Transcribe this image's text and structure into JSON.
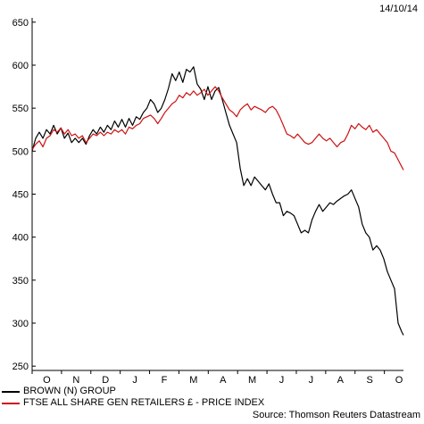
{
  "chart_data": {
    "type": "line",
    "date_stamp": "14/10/14",
    "y_ticks": [
      250,
      300,
      350,
      400,
      450,
      500,
      550,
      600,
      650
    ],
    "ylim": [
      245,
      655
    ],
    "x_ticks": [
      "O",
      "N",
      "D",
      "J",
      "F",
      "M",
      "A",
      "M",
      "J",
      "J",
      "A",
      "S",
      "O"
    ],
    "series": [
      {
        "name": "BROWN (N) GROUP",
        "color": "#000000",
        "points": [
          [
            0,
            500
          ],
          [
            2,
            515
          ],
          [
            4,
            522
          ],
          [
            6,
            515
          ],
          [
            8,
            525
          ],
          [
            10,
            520
          ],
          [
            12,
            530
          ],
          [
            14,
            520
          ],
          [
            16,
            527
          ],
          [
            18,
            515
          ],
          [
            20,
            521
          ],
          [
            22,
            510
          ],
          [
            24,
            515
          ],
          [
            26,
            510
          ],
          [
            28,
            515
          ],
          [
            30,
            508
          ],
          [
            32,
            518
          ],
          [
            34,
            525
          ],
          [
            36,
            520
          ],
          [
            38,
            528
          ],
          [
            40,
            522
          ],
          [
            42,
            530
          ],
          [
            44,
            525
          ],
          [
            46,
            535
          ],
          [
            48,
            528
          ],
          [
            50,
            537
          ],
          [
            52,
            528
          ],
          [
            54,
            538
          ],
          [
            56,
            530
          ],
          [
            58,
            540
          ],
          [
            60,
            537
          ],
          [
            62,
            545
          ],
          [
            64,
            550
          ],
          [
            66,
            560
          ],
          [
            68,
            555
          ],
          [
            70,
            545
          ],
          [
            72,
            550
          ],
          [
            74,
            560
          ],
          [
            76,
            573
          ],
          [
            78,
            590
          ],
          [
            80,
            582
          ],
          [
            82,
            592
          ],
          [
            84,
            580
          ],
          [
            86,
            595
          ],
          [
            88,
            592
          ],
          [
            90,
            598
          ],
          [
            92,
            578
          ],
          [
            94,
            572
          ],
          [
            96,
            560
          ],
          [
            98,
            575
          ],
          [
            100,
            560
          ],
          [
            102,
            570
          ],
          [
            104,
            574
          ],
          [
            106,
            560
          ],
          [
            108,
            545
          ],
          [
            110,
            530
          ],
          [
            112,
            520
          ],
          [
            114,
            510
          ],
          [
            116,
            480
          ],
          [
            118,
            460
          ],
          [
            120,
            468
          ],
          [
            122,
            460
          ],
          [
            124,
            470
          ],
          [
            126,
            465
          ],
          [
            128,
            460
          ],
          [
            130,
            455
          ],
          [
            132,
            462
          ],
          [
            134,
            450
          ],
          [
            136,
            440
          ],
          [
            138,
            440
          ],
          [
            140,
            425
          ],
          [
            142,
            430
          ],
          [
            144,
            428
          ],
          [
            146,
            425
          ],
          [
            148,
            415
          ],
          [
            150,
            405
          ],
          [
            152,
            408
          ],
          [
            154,
            405
          ],
          [
            156,
            420
          ],
          [
            158,
            430
          ],
          [
            160,
            438
          ],
          [
            162,
            430
          ],
          [
            164,
            435
          ],
          [
            166,
            440
          ],
          [
            168,
            438
          ],
          [
            170,
            442
          ],
          [
            172,
            445
          ],
          [
            174,
            448
          ],
          [
            176,
            450
          ],
          [
            178,
            455
          ],
          [
            180,
            445
          ],
          [
            182,
            435
          ],
          [
            184,
            415
          ],
          [
            186,
            405
          ],
          [
            188,
            400
          ],
          [
            190,
            385
          ],
          [
            192,
            390
          ],
          [
            194,
            385
          ],
          [
            196,
            375
          ],
          [
            198,
            360
          ],
          [
            200,
            350
          ],
          [
            202,
            340
          ],
          [
            204,
            300
          ],
          [
            206,
            290
          ],
          [
            207,
            286
          ]
        ]
      },
      {
        "name": "FTSE ALL SHARE GEN RETAILERS £ - PRICE INDEX",
        "color": "#cc1111",
        "points": [
          [
            0,
            502
          ],
          [
            2,
            508
          ],
          [
            4,
            512
          ],
          [
            6,
            505
          ],
          [
            8,
            515
          ],
          [
            10,
            518
          ],
          [
            12,
            525
          ],
          [
            14,
            522
          ],
          [
            16,
            527
          ],
          [
            18,
            520
          ],
          [
            20,
            525
          ],
          [
            22,
            518
          ],
          [
            24,
            520
          ],
          [
            26,
            515
          ],
          [
            28,
            518
          ],
          [
            30,
            510
          ],
          [
            32,
            515
          ],
          [
            34,
            520
          ],
          [
            36,
            518
          ],
          [
            38,
            522
          ],
          [
            40,
            518
          ],
          [
            42,
            522
          ],
          [
            44,
            520
          ],
          [
            46,
            525
          ],
          [
            48,
            522
          ],
          [
            50,
            525
          ],
          [
            52,
            520
          ],
          [
            54,
            528
          ],
          [
            56,
            526
          ],
          [
            58,
            530
          ],
          [
            60,
            532
          ],
          [
            62,
            538
          ],
          [
            64,
            540
          ],
          [
            66,
            542
          ],
          [
            68,
            538
          ],
          [
            70,
            532
          ],
          [
            72,
            538
          ],
          [
            74,
            545
          ],
          [
            76,
            550
          ],
          [
            78,
            555
          ],
          [
            80,
            558
          ],
          [
            82,
            565
          ],
          [
            84,
            562
          ],
          [
            86,
            568
          ],
          [
            88,
            565
          ],
          [
            90,
            570
          ],
          [
            92,
            565
          ],
          [
            94,
            568
          ],
          [
            96,
            572
          ],
          [
            98,
            565
          ],
          [
            100,
            570
          ],
          [
            102,
            575
          ],
          [
            104,
            570
          ],
          [
            106,
            562
          ],
          [
            108,
            555
          ],
          [
            110,
            548
          ],
          [
            112,
            545
          ],
          [
            114,
            540
          ],
          [
            116,
            548
          ],
          [
            118,
            552
          ],
          [
            120,
            555
          ],
          [
            122,
            548
          ],
          [
            124,
            552
          ],
          [
            126,
            550
          ],
          [
            128,
            548
          ],
          [
            130,
            545
          ],
          [
            132,
            550
          ],
          [
            134,
            552
          ],
          [
            136,
            548
          ],
          [
            138,
            540
          ],
          [
            140,
            530
          ],
          [
            142,
            520
          ],
          [
            144,
            518
          ],
          [
            146,
            515
          ],
          [
            148,
            520
          ],
          [
            150,
            515
          ],
          [
            152,
            510
          ],
          [
            154,
            508
          ],
          [
            156,
            510
          ],
          [
            158,
            515
          ],
          [
            160,
            520
          ],
          [
            162,
            515
          ],
          [
            164,
            512
          ],
          [
            166,
            515
          ],
          [
            168,
            510
          ],
          [
            170,
            505
          ],
          [
            172,
            510
          ],
          [
            174,
            512
          ],
          [
            176,
            520
          ],
          [
            178,
            530
          ],
          [
            180,
            526
          ],
          [
            182,
            532
          ],
          [
            184,
            528
          ],
          [
            186,
            525
          ],
          [
            188,
            530
          ],
          [
            190,
            522
          ],
          [
            192,
            525
          ],
          [
            194,
            520
          ],
          [
            196,
            515
          ],
          [
            198,
            510
          ],
          [
            200,
            500
          ],
          [
            202,
            498
          ],
          [
            204,
            490
          ],
          [
            206,
            482
          ],
          [
            207,
            478
          ]
        ]
      }
    ],
    "source": "Source: Thomson Reuters Datastream"
  }
}
